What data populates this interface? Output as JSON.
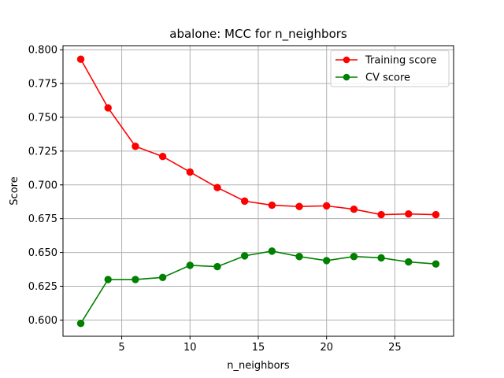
{
  "chart_data": {
    "type": "line",
    "title": "abalone: MCC for n_neighbors",
    "xlabel": "n_neighbors",
    "ylabel": "Score",
    "xlim": [
      0.7,
      29.3
    ],
    "ylim": [
      0.588,
      0.803
    ],
    "xticks": [
      5,
      10,
      15,
      20,
      25
    ],
    "xtick_labels": [
      "5",
      "10",
      "15",
      "20",
      "25"
    ],
    "yticks": [
      0.6,
      0.625,
      0.65,
      0.675,
      0.7,
      0.725,
      0.75,
      0.775,
      0.8
    ],
    "ytick_labels": [
      "0.600",
      "0.625",
      "0.650",
      "0.675",
      "0.700",
      "0.725",
      "0.750",
      "0.775",
      "0.800"
    ],
    "grid": true,
    "legend_position": "top-right",
    "x": [
      2,
      4,
      6,
      8,
      10,
      12,
      14,
      16,
      18,
      20,
      22,
      24,
      26,
      28
    ],
    "series": [
      {
        "name": "Training score",
        "color": "#ff0000",
        "marker": "circle",
        "values": [
          0.793,
          0.757,
          0.7285,
          0.721,
          0.7095,
          0.698,
          0.688,
          0.685,
          0.684,
          0.6845,
          0.682,
          0.678,
          0.6785,
          0.678
        ]
      },
      {
        "name": "CV score",
        "color": "#008000",
        "marker": "circle",
        "values": [
          0.5975,
          0.63,
          0.63,
          0.6315,
          0.6405,
          0.6395,
          0.6475,
          0.651,
          0.647,
          0.644,
          0.647,
          0.646,
          0.643,
          0.6415
        ]
      }
    ]
  }
}
